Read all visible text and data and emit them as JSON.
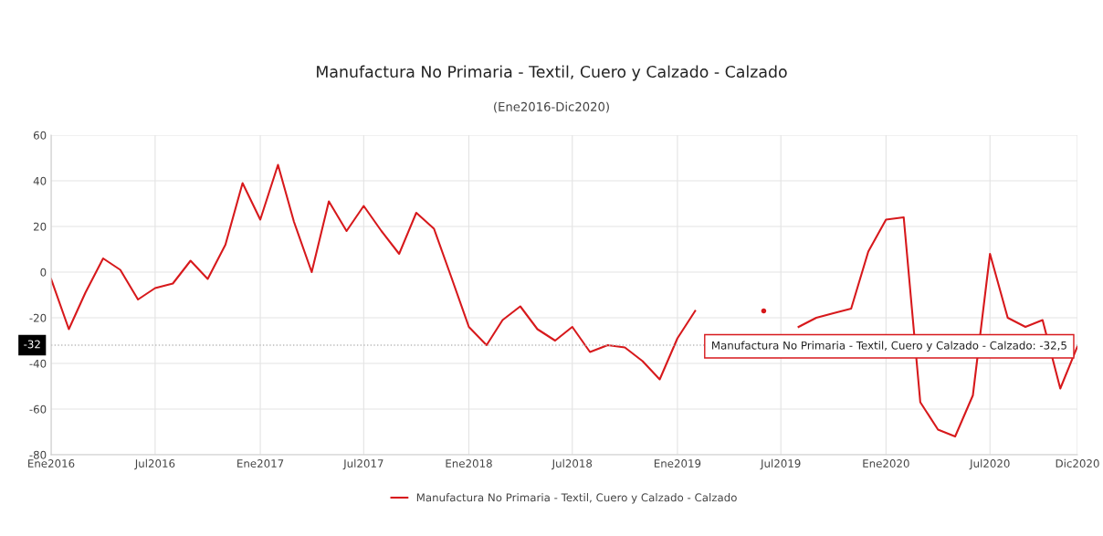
{
  "chart_data": {
    "type": "line",
    "title": "Manufactura No Primaria - Textil, Cuero y Calzado - Calzado",
    "subtitle": "(Ene2016-Dic2020)",
    "x": [
      "2016-01",
      "2016-02",
      "2016-03",
      "2016-04",
      "2016-05",
      "2016-06",
      "2016-07",
      "2016-08",
      "2016-09",
      "2016-10",
      "2016-11",
      "2016-12",
      "2017-01",
      "2017-02",
      "2017-03",
      "2017-04",
      "2017-05",
      "2017-06",
      "2017-07",
      "2017-08",
      "2017-09",
      "2017-10",
      "2017-11",
      "2017-12",
      "2018-01",
      "2018-02",
      "2018-03",
      "2018-04",
      "2018-05",
      "2018-06",
      "2018-07",
      "2018-08",
      "2018-09",
      "2018-10",
      "2018-11",
      "2018-12",
      "2019-01",
      "2019-02",
      "2019-03",
      "2019-04",
      "2019-05",
      "2019-06",
      "2019-07",
      "2019-08",
      "2019-09",
      "2019-10",
      "2019-11",
      "2019-12",
      "2020-01",
      "2020-02",
      "2020-03",
      "2020-04",
      "2020-05",
      "2020-06",
      "2020-07",
      "2020-08",
      "2020-09",
      "2020-10",
      "2020-11",
      "2020-12"
    ],
    "series": [
      {
        "name": "Manufactura No Primaria - Textil, Cuero y Calzado - Calzado",
        "color": "#d7191c",
        "values": [
          -3,
          -25,
          -9,
          6,
          1,
          -12,
          -7,
          -5,
          5,
          -3,
          12,
          39,
          23,
          47,
          22,
          0,
          31,
          18,
          29,
          18,
          8,
          26,
          19,
          -2,
          -24,
          -32,
          -21,
          -15,
          -25,
          -30,
          -24,
          -35,
          -32,
          -33,
          -39,
          -47,
          -29,
          -17,
          null,
          null,
          null,
          -17,
          null,
          -24,
          -20,
          -18,
          -16,
          9,
          23,
          24,
          -57,
          -69,
          -72,
          -54,
          8,
          -20,
          -24,
          -21,
          -51,
          -32.5
        ]
      }
    ],
    "xlim": [
      "2016-01",
      "2020-12"
    ],
    "xticks": [
      {
        "value": "2016-01",
        "label": "Ene2016"
      },
      {
        "value": "2016-07",
        "label": "Jul2016"
      },
      {
        "value": "2017-01",
        "label": "Ene2017"
      },
      {
        "value": "2017-07",
        "label": "Jul2017"
      },
      {
        "value": "2018-01",
        "label": "Ene2018"
      },
      {
        "value": "2018-07",
        "label": "Jul2018"
      },
      {
        "value": "2019-01",
        "label": "Ene2019"
      },
      {
        "value": "2019-07",
        "label": "Jul2019"
      },
      {
        "value": "2020-01",
        "label": "Ene2020"
      },
      {
        "value": "2020-07",
        "label": "Jul2020"
      },
      {
        "value": "2020-12",
        "label": "Dic2020"
      }
    ],
    "ylim": [
      -80,
      60
    ],
    "yticks": [
      -80,
      -60,
      -40,
      -20,
      0,
      20,
      40,
      60
    ],
    "ref_lines": [
      {
        "axis": "y",
        "value": -32,
        "label": "-32",
        "color": "#bbbbbb",
        "line_style": "dotted"
      }
    ],
    "annotations": [
      {
        "text": "Manufactura No Primaria - Textil, Cuero y Calzado - Calzado: -32,5",
        "x": "2020-12",
        "y": -32.5
      }
    ],
    "grid": true,
    "legend": "bottom",
    "marker": "none",
    "line_style": "solid"
  }
}
